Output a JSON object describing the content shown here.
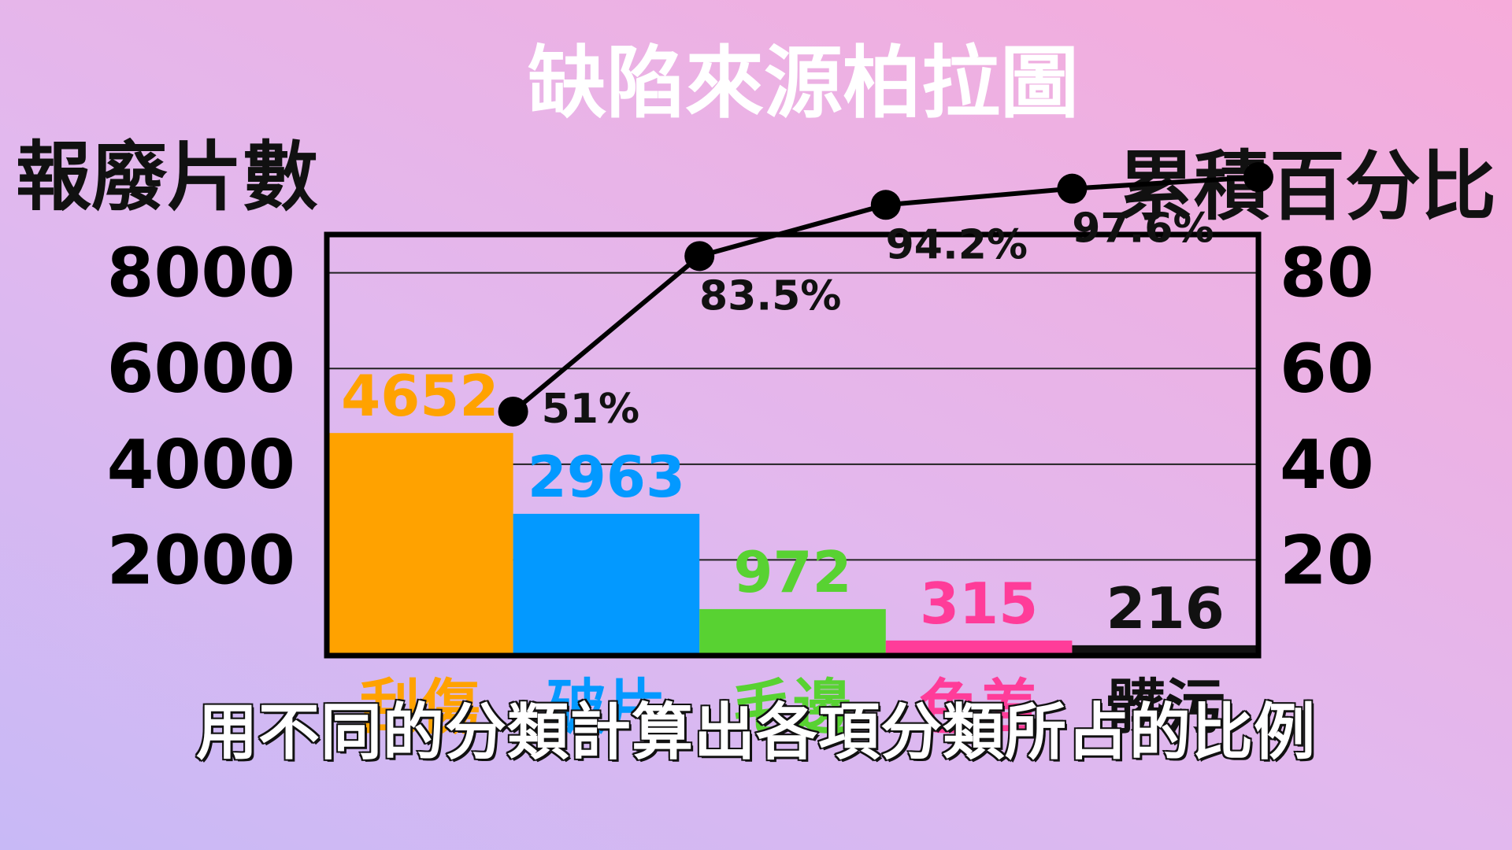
{
  "chart_data": {
    "type": "bar",
    "title": "缺陷來源柏拉圖",
    "ylabel": "報廢片數",
    "y2label": "累積百分比",
    "categories": [
      "刮傷",
      "破片",
      "毛邊",
      "色差",
      "髒污"
    ],
    "series": [
      {
        "values": [
          4652,
          2963,
          972,
          315,
          216
        ],
        "colors": [
          "#ffa200",
          "#0399ff",
          "#58d232",
          "#ff3c99",
          "#111111"
        ]
      },
      {
        "type": "line",
        "axis": "right",
        "values": [
          51,
          83.5,
          94.2,
          97.6,
          100
        ],
        "labels": [
          "51%",
          "83.5%",
          "94.2%",
          "97.6%",
          ""
        ]
      }
    ],
    "yticks": [
      "2000",
      "4000",
      "6000",
      "8000"
    ],
    "y2ticks": [
      "20",
      "40",
      "60",
      "80"
    ],
    "ylim": [
      0,
      8800
    ],
    "y2lim": [
      0,
      88
    ],
    "grid": true
  },
  "subtitle": "用不同的分類計算出各項分類所占的比例"
}
